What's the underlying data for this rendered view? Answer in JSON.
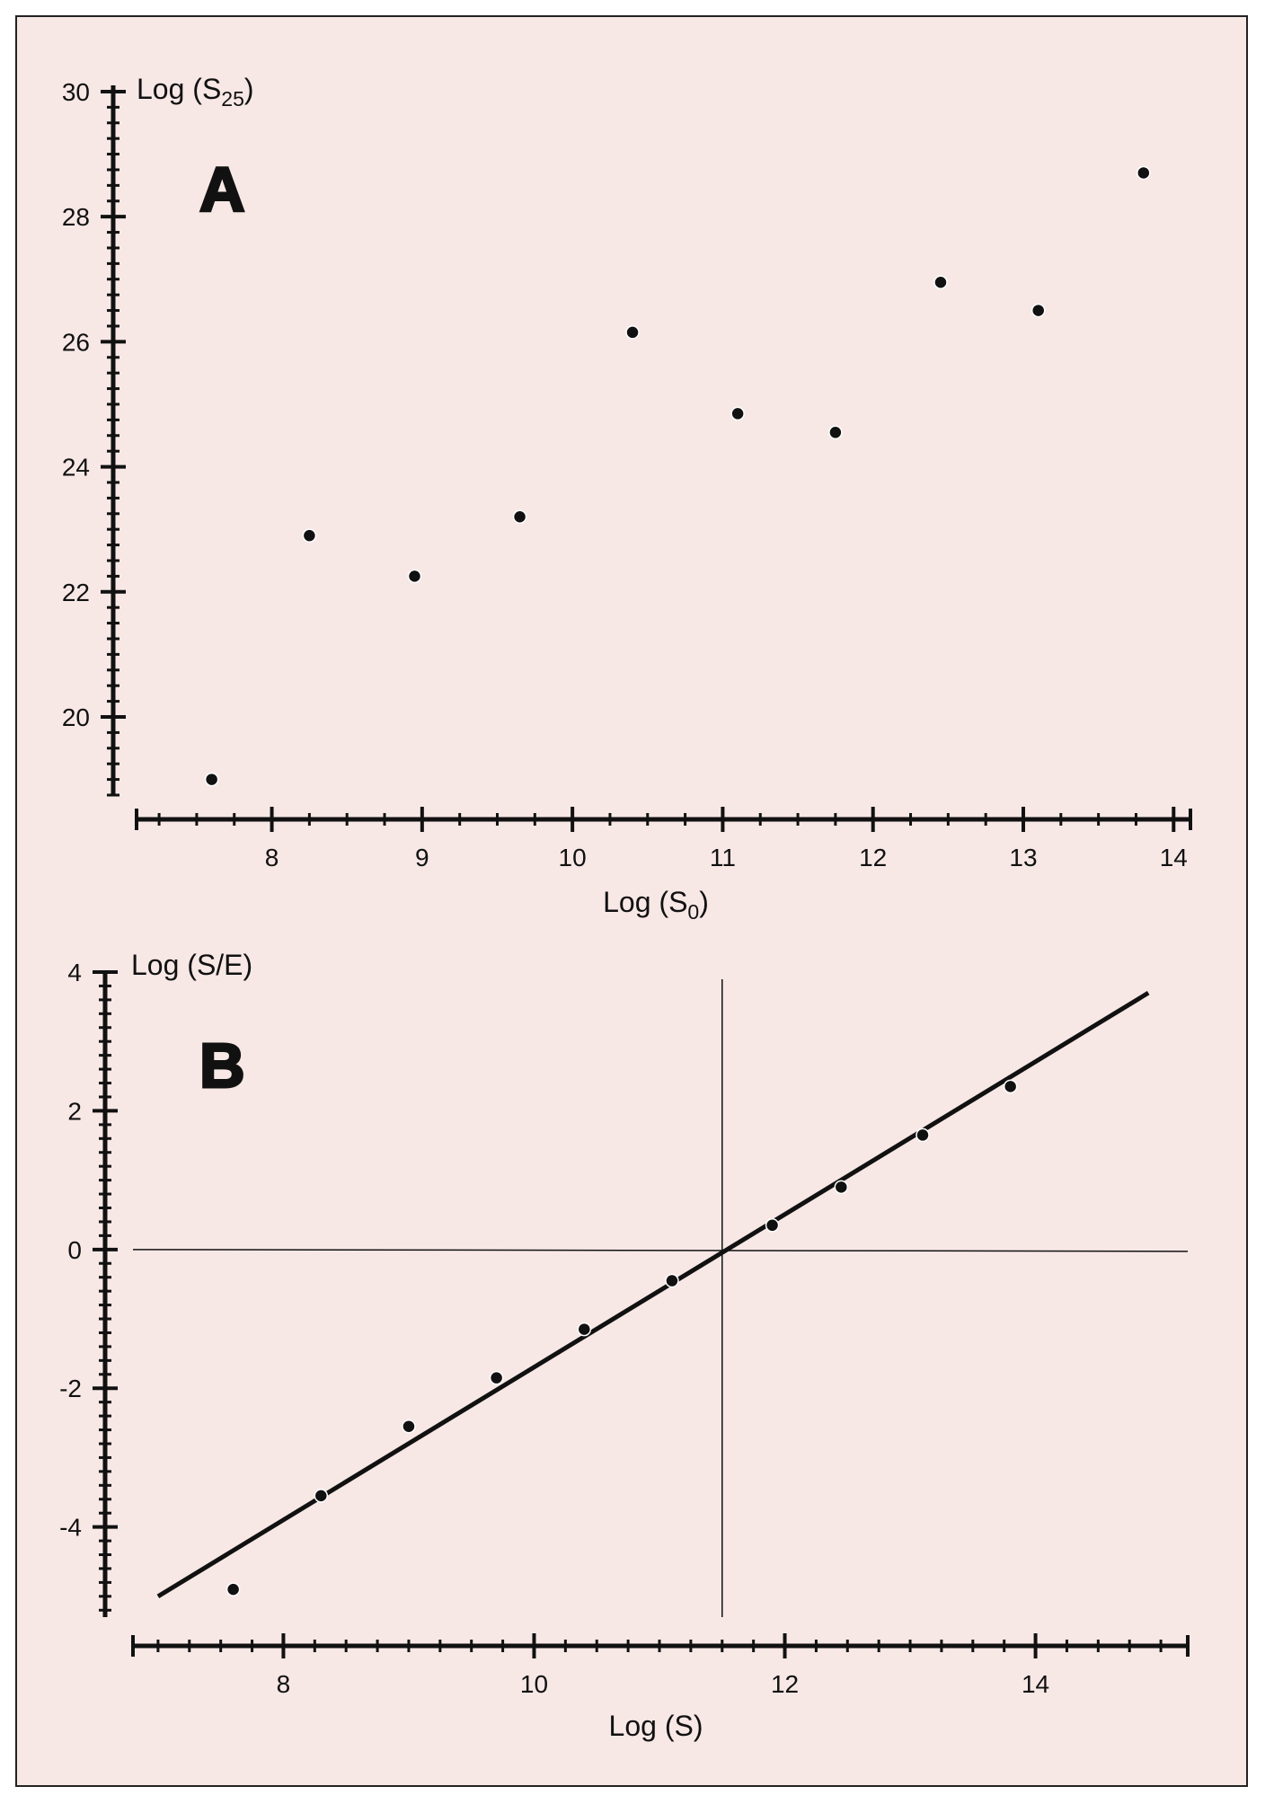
{
  "chart_data": [
    {
      "panel_label": "A",
      "type": "scatter",
      "xlabel": "Log (S",
      "xlabel_sub": "0",
      "xlabel_end": ")",
      "ylabel": "Log (S",
      "ylabel_sub": "25",
      "ylabel_end": ")",
      "xlim": [
        7.1,
        14.1
      ],
      "ylim": [
        18.75,
        30.1
      ],
      "xticks": [
        8,
        9,
        10,
        11,
        12,
        13,
        14
      ],
      "yticks": [
        20,
        22,
        24,
        26,
        28,
        30
      ],
      "x_minor_step": 0.25,
      "y_minor_step": 0.25,
      "points": [
        {
          "x": 7.6,
          "y": 19.0
        },
        {
          "x": 8.25,
          "y": 22.9
        },
        {
          "x": 8.95,
          "y": 22.25
        },
        {
          "x": 9.65,
          "y": 23.2
        },
        {
          "x": 10.4,
          "y": 26.15
        },
        {
          "x": 11.1,
          "y": 24.85
        },
        {
          "x": 11.75,
          "y": 24.55
        },
        {
          "x": 12.45,
          "y": 26.95
        },
        {
          "x": 13.1,
          "y": 26.5
        },
        {
          "x": 13.8,
          "y": 28.7
        }
      ]
    },
    {
      "panel_label": "B",
      "type": "scatter",
      "xlabel": "Log (S)",
      "ylabel": "Log (S/E)",
      "xlim": [
        6.8,
        15.2
      ],
      "ylim": [
        -5.3,
        4.0
      ],
      "xticks": [
        8,
        10,
        12,
        14
      ],
      "yticks": [
        -4,
        -2,
        0,
        2,
        4
      ],
      "x_minor_step": 0.25,
      "y_minor_step": 0.2,
      "points": [
        {
          "x": 7.6,
          "y": -4.9
        },
        {
          "x": 8.3,
          "y": -3.55
        },
        {
          "x": 9.0,
          "y": -2.55
        },
        {
          "x": 9.7,
          "y": -1.85
        },
        {
          "x": 10.4,
          "y": -1.15
        },
        {
          "x": 11.1,
          "y": -0.45
        },
        {
          "x": 11.9,
          "y": 0.35
        },
        {
          "x": 12.45,
          "y": 0.9
        },
        {
          "x": 13.1,
          "y": 1.65
        },
        {
          "x": 13.8,
          "y": 2.35
        }
      ],
      "fit_line": {
        "x": [
          7.0,
          14.9
        ],
        "y": [
          -5.0,
          3.7
        ]
      },
      "reference_lines": {
        "horizontal_y": 0,
        "vertical_x": 11.5
      }
    }
  ],
  "colors": {
    "paper": "#f7e8e6",
    "ink": "#111111",
    "border": "#222222"
  }
}
